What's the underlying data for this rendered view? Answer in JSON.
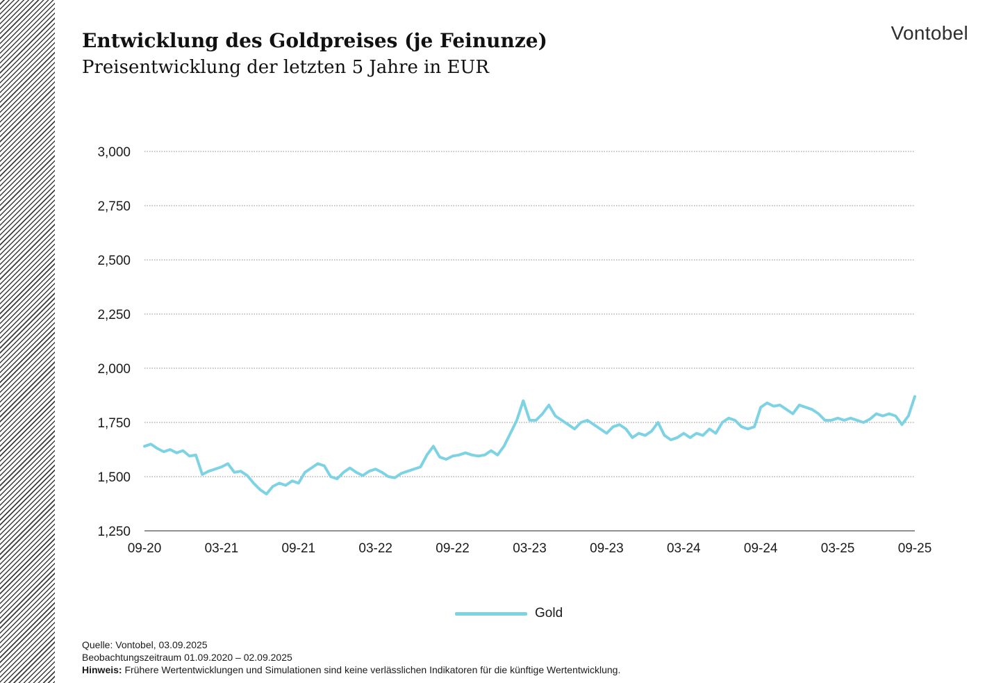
{
  "header": {
    "title": "Entwicklung des Goldpreises (je Feinunze)",
    "subtitle": "Preisentwicklung der letzten 5 Jahre in EUR",
    "logo": "Vontobel"
  },
  "footer": {
    "source": "Quelle: Vontobel, 03.09.2025",
    "period": "Beobachtungszeitraum  01.09.2020 – 02.09.2025",
    "note_label": "Hinweis:",
    "note_text": " Frühere Wertentwicklungen und Simulationen sind keine verlässlichen Indikatoren für die künftige Wertentwicklung."
  },
  "colors": {
    "series": "#7dd3e3",
    "grid": "#888888",
    "axis": "#222222",
    "text": "#1a1a1a"
  },
  "chart_data": {
    "type": "line",
    "title": "Entwicklung des Goldpreises (je Feinunze)",
    "subtitle": "Preisentwicklung der letzten 5 Jahre in EUR",
    "xlabel": "",
    "ylabel": "",
    "ylim": [
      1250,
      3000
    ],
    "yticks": [
      1250,
      1500,
      1750,
      2000,
      2250,
      2500,
      2750,
      3000
    ],
    "ytick_labels": [
      "1,250",
      "1,500",
      "1,750",
      "2,000",
      "2,250",
      "2,500",
      "2,750",
      "3,000"
    ],
    "xlim": [
      0,
      60
    ],
    "xticks": [
      0,
      6,
      12,
      18,
      24,
      30,
      36,
      42,
      48,
      54,
      60
    ],
    "xtick_labels": [
      "09-20",
      "03-21",
      "09-21",
      "03-22",
      "09-22",
      "03-23",
      "09-23",
      "03-24",
      "09-24",
      "03-25",
      "09-25"
    ],
    "grid": "horizontal dotted",
    "legend": {
      "position": "bottom-center",
      "entries": [
        "Gold"
      ]
    },
    "series": [
      {
        "name": "Gold",
        "x": [
          0,
          0.5,
          1,
          1.5,
          2,
          2.5,
          3,
          3.5,
          4,
          4.5,
          5,
          5.5,
          6,
          6.5,
          7,
          7.5,
          8,
          8.5,
          9,
          9.5,
          10,
          10.5,
          11,
          11.5,
          12,
          12.5,
          13,
          13.5,
          14,
          14.5,
          15,
          15.5,
          16,
          16.5,
          17,
          17.5,
          18,
          18.5,
          19,
          19.5,
          20,
          20.5,
          21,
          21.5,
          22,
          22.5,
          23,
          23.5,
          24,
          24.5,
          25,
          25.5,
          26,
          26.5,
          27,
          27.5,
          28,
          28.5,
          29,
          29.5,
          30,
          30.5,
          31,
          31.5,
          32,
          32.5,
          33,
          33.5,
          34,
          34.5,
          35,
          35.5,
          36,
          36.5,
          37,
          37.5,
          38,
          38.5,
          39,
          39.5,
          40,
          40.5,
          41,
          41.5,
          42,
          42.5,
          43,
          43.5,
          44,
          44.5,
          45,
          45.5,
          46,
          46.5,
          47,
          47.5,
          48,
          48.5,
          49,
          49.5,
          50,
          50.5,
          51,
          51.5,
          52,
          52.5,
          53,
          53.5,
          54,
          54.5,
          55,
          55.5,
          56,
          56.5,
          57,
          57.5,
          58,
          58.5,
          59,
          59.5,
          60
        ],
        "values": [
          1640,
          1650,
          1630,
          1615,
          1625,
          1610,
          1620,
          1595,
          1600,
          1510,
          1525,
          1535,
          1545,
          1560,
          1520,
          1525,
          1505,
          1470,
          1440,
          1420,
          1455,
          1470,
          1460,
          1480,
          1470,
          1520,
          1540,
          1560,
          1550,
          1500,
          1490,
          1520,
          1540,
          1520,
          1505,
          1525,
          1535,
          1520,
          1500,
          1495,
          1515,
          1525,
          1535,
          1545,
          1600,
          1640,
          1590,
          1580,
          1595,
          1600,
          1610,
          1600,
          1595,
          1600,
          1620,
          1600,
          1640,
          1700,
          1760,
          1850,
          1760,
          1760,
          1790,
          1830,
          1780,
          1760,
          1740,
          1720,
          1750,
          1760,
          1740,
          1720,
          1700,
          1730,
          1740,
          1720,
          1680,
          1700,
          1690,
          1710,
          1750,
          1690,
          1670,
          1680,
          1700,
          1680,
          1700,
          1690,
          1720,
          1700,
          1750,
          1770,
          1760,
          1730,
          1720,
          1730,
          1820,
          1840,
          1825,
          1830,
          1810,
          1790,
          1830,
          1820,
          1810,
          1790,
          1760,
          1760,
          1770,
          1760,
          1770,
          1760,
          1750,
          1765,
          1790,
          1780,
          1790,
          1780,
          1740,
          1780,
          1870
        ],
        "x_note": "months since 09-2020 (half-month steps)"
      }
    ]
  }
}
